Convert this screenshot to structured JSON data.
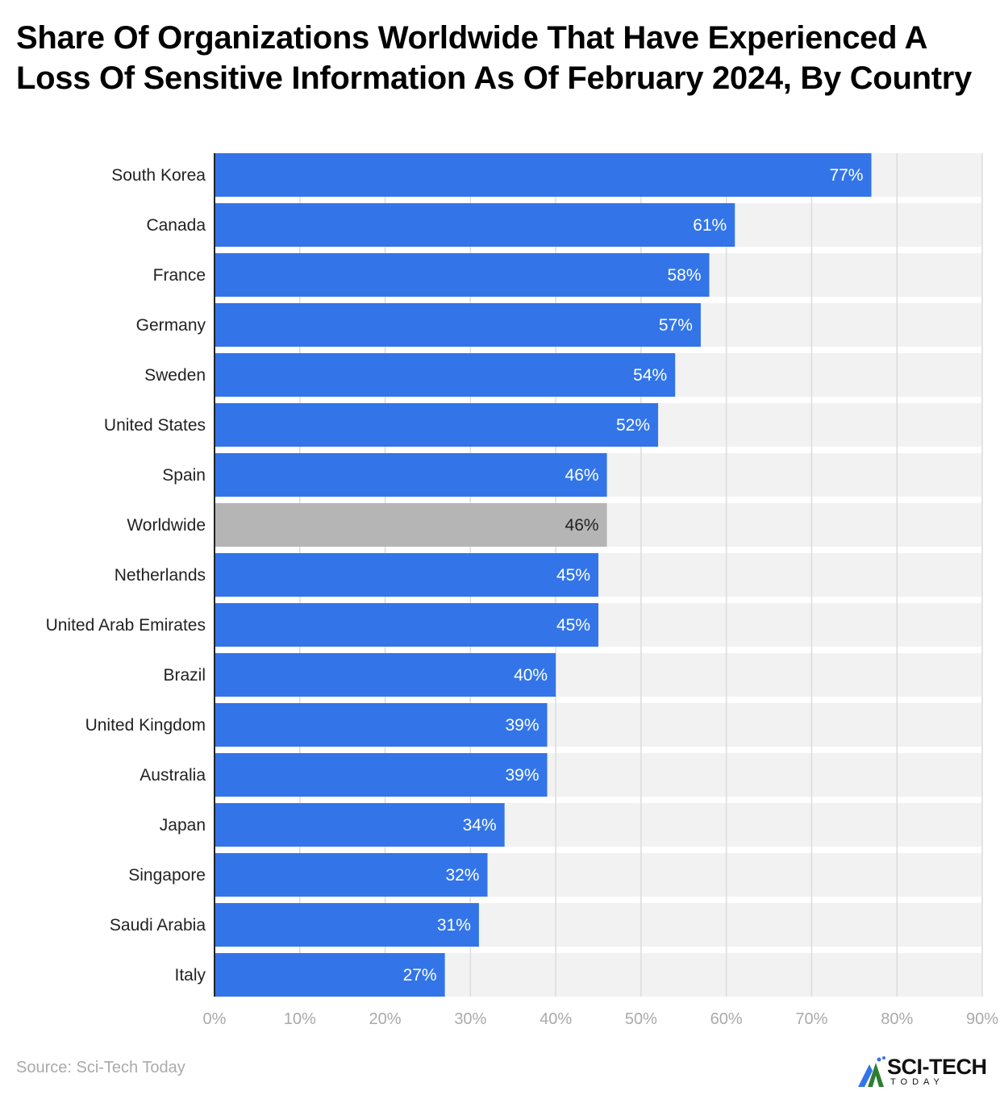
{
  "title": "Share Of Organizations Worldwide That Have Experienced A Loss Of Sensitive Information As Of February 2024, By Country",
  "source": "Source: Sci-Tech Today",
  "logo": {
    "line1": "SCI-TECH",
    "line2": "TODAY"
  },
  "colors": {
    "bar": "#3375e8",
    "highlight": "#b5b5b5",
    "track": "#f2f2f2"
  },
  "chart_data": {
    "type": "bar",
    "orientation": "horizontal",
    "categories": [
      "South Korea",
      "Canada",
      "France",
      "Germany",
      "Sweden",
      "United States",
      "Spain",
      "Worldwide",
      "Netherlands",
      "United Arab Emirates",
      "Brazil",
      "United Kingdom",
      "Australia",
      "Japan",
      "Singapore",
      "Saudi Arabia",
      "Italy"
    ],
    "values": [
      77,
      61,
      58,
      57,
      54,
      52,
      46,
      46,
      45,
      45,
      40,
      39,
      39,
      34,
      32,
      31,
      27
    ],
    "highlighted": [
      "Worldwide"
    ],
    "data_labels": [
      "77%",
      "61%",
      "58%",
      "57%",
      "54%",
      "52%",
      "46%",
      "46%",
      "45%",
      "45%",
      "40%",
      "39%",
      "39%",
      "34%",
      "32%",
      "31%",
      "27%"
    ],
    "xlim": [
      0,
      90
    ],
    "x_ticks": [
      "0%",
      "10%",
      "20%",
      "30%",
      "40%",
      "50%",
      "60%",
      "70%",
      "80%",
      "90%"
    ],
    "grid": true,
    "title": "Share Of Organizations Worldwide That Have Experienced A Loss Of Sensitive Information As Of February 2024, By Country"
  }
}
